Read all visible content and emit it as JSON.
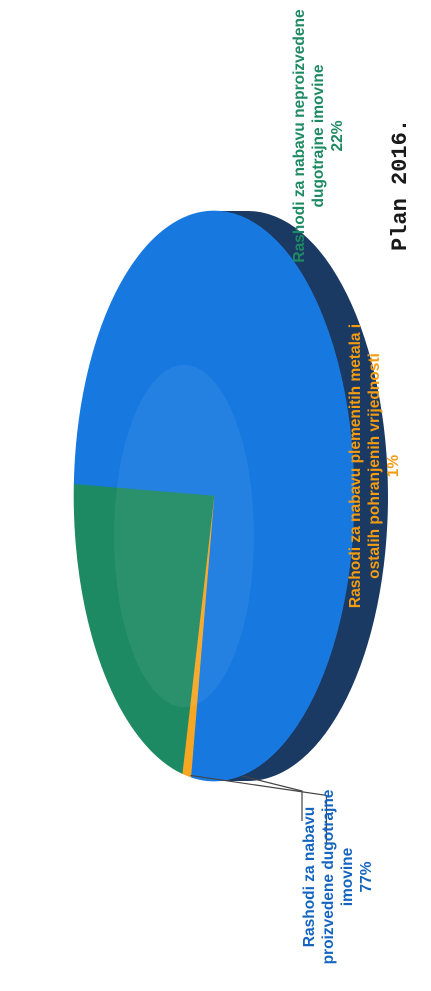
{
  "chart_data": {
    "type": "pie",
    "title": "",
    "slices": [
      {
        "name": "Rashodi za nabavu proizvedene dugotrajne imovine",
        "value": 77,
        "label": "77%",
        "color": "#1779e0"
      },
      {
        "name": "Rashodi za nabavu neproizvedene dugotrajne imovine",
        "value": 22,
        "label": "22%",
        "color": "#1e8a63"
      },
      {
        "name": "Rashodi za nabavu plemenitih metala i ostalih pohranjenih vrijednosti",
        "value": 1,
        "label": "1%",
        "color": "#f5a623"
      }
    ]
  },
  "labels": {
    "proizvedene_lines": [
      "Rashodi za nabavu",
      "proizvedene dugotrajne",
      "imovine",
      "77%"
    ],
    "neproizvedene_lines": [
      "Rashodi za nabavu neproizvedene",
      "dugotrajne imovine",
      "22%"
    ],
    "plemenitih_lines": [
      "Rashodi za nabavu plemenitih metala i",
      "ostalih pohranjenih vrijednosti",
      "1%"
    ]
  },
  "title_fragment": "Plan 2016.",
  "colors": {
    "side": "#1b3a63",
    "proizvedene_text": "#1565c0",
    "neproizvedene_text": "#1e8a63",
    "plemenitih_text": "#f39c12"
  }
}
